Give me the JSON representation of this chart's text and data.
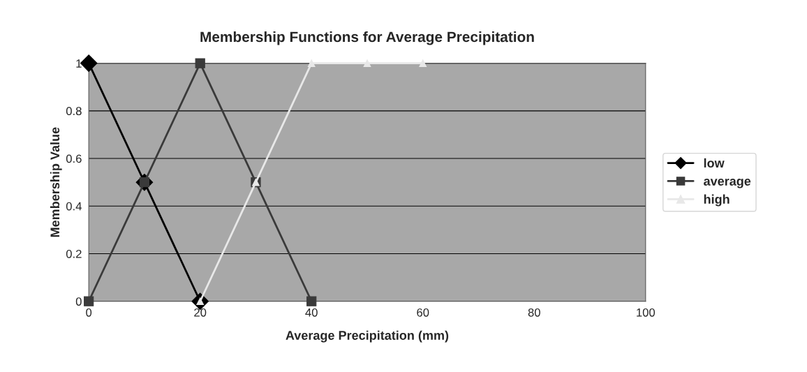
{
  "chart_data": {
    "type": "line",
    "title": "Membership Functions for Average Precipitation",
    "xlabel": "Average Precipitation (mm)",
    "ylabel": "Membership Value",
    "series": [
      {
        "name": "low",
        "color": "#000000",
        "marker": "diamond",
        "x": [
          0,
          10,
          20
        ],
        "values": [
          1,
          0.5,
          0
        ]
      },
      {
        "name": "average",
        "color": "#3a3a3a",
        "marker": "square",
        "x": [
          0,
          10,
          20,
          30,
          40
        ],
        "values": [
          0,
          0.5,
          1,
          0.5,
          0
        ]
      },
      {
        "name": "high",
        "color": "#e8e8e8",
        "marker": "triangle",
        "x": [
          20,
          30,
          40,
          50,
          60
        ],
        "values": [
          0,
          0.5,
          1,
          1,
          1
        ]
      }
    ],
    "xlim": [
      0,
      100
    ],
    "xticks": [
      0,
      20,
      40,
      60,
      80,
      100
    ],
    "ylim": [
      0,
      1
    ],
    "yticks": [
      0,
      {
        "value": 0.2,
        "label": "0.2"
      },
      {
        "value": 0.4,
        "label": "0.4"
      },
      {
        "value": 0.6,
        "label": "0.6"
      },
      {
        "value": 0.8,
        "label": "0.8"
      },
      1
    ],
    "grid": "y",
    "legend": "right",
    "line_style": "solid"
  }
}
